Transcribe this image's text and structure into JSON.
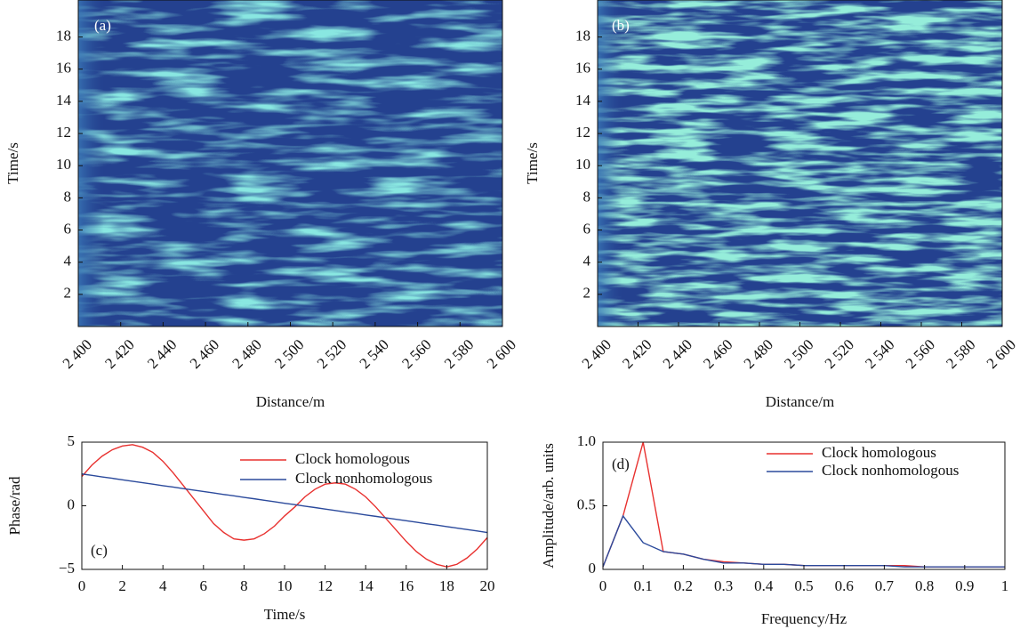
{
  "chart_data": [
    {
      "type": "heatmap",
      "annotation": "(a)",
      "xlabel": "Distance/m",
      "ylabel": "Time/s",
      "xlim": [
        2400,
        2600
      ],
      "ylim": [
        0,
        20.3
      ],
      "xticks": [
        {
          "value": 2400,
          "label": "2 400"
        },
        {
          "value": 2420,
          "label": "2 420"
        },
        {
          "value": 2440,
          "label": "2 440"
        },
        {
          "value": 2460,
          "label": "2 460"
        },
        {
          "value": 2480,
          "label": "2 480"
        },
        {
          "value": 2500,
          "label": "2 500"
        },
        {
          "value": 2520,
          "label": "2 520"
        },
        {
          "value": 2540,
          "label": "2 540"
        },
        {
          "value": 2560,
          "label": "2 560"
        },
        {
          "value": 2580,
          "label": "2 580"
        },
        {
          "value": 2600,
          "label": "2 600"
        }
      ],
      "yticks": [
        2,
        4,
        6,
        8,
        10,
        12,
        14,
        16,
        18
      ]
    },
    {
      "type": "heatmap",
      "annotation": "(b)",
      "xlabel": "Distance/m",
      "ylabel": "Time/s",
      "xlim": [
        2400,
        2600
      ],
      "ylim": [
        0,
        20.3
      ],
      "xticks": [
        {
          "value": 2400,
          "label": "2 400"
        },
        {
          "value": 2420,
          "label": "2 420"
        },
        {
          "value": 2440,
          "label": "2 440"
        },
        {
          "value": 2460,
          "label": "2 460"
        },
        {
          "value": 2480,
          "label": "2 480"
        },
        {
          "value": 2500,
          "label": "2 500"
        },
        {
          "value": 2520,
          "label": "2 520"
        },
        {
          "value": 2540,
          "label": "2 540"
        },
        {
          "value": 2560,
          "label": "2 560"
        },
        {
          "value": 2580,
          "label": "2 580"
        },
        {
          "value": 2600,
          "label": "2 600"
        }
      ],
      "yticks": [
        2,
        4,
        6,
        8,
        10,
        12,
        14,
        16,
        18
      ]
    },
    {
      "type": "line",
      "annotation": "(c)",
      "xlabel": "Time/s",
      "ylabel": "Phase/rad",
      "xlim": [
        0,
        20
      ],
      "ylim": [
        -5,
        5
      ],
      "xticks": [
        0,
        2,
        4,
        6,
        8,
        10,
        12,
        14,
        16,
        18,
        20
      ],
      "yticks": [
        {
          "value": -5,
          "label": "−5"
        },
        0,
        5
      ],
      "x": [
        0,
        0.5,
        1,
        1.5,
        2,
        2.5,
        3,
        3.5,
        4,
        4.5,
        5,
        5.5,
        6,
        6.5,
        7,
        7.5,
        8,
        8.5,
        9,
        9.5,
        10,
        10.5,
        11,
        11.5,
        12,
        12.5,
        13,
        13.5,
        14,
        14.5,
        15,
        15.5,
        16,
        16.5,
        17,
        17.5,
        18,
        18.5,
        19,
        19.5,
        20
      ],
      "series": [
        {
          "name": "Clock homologous",
          "color": "#e8312f",
          "values": [
            2.3,
            3.2,
            3.9,
            4.4,
            4.7,
            4.8,
            4.6,
            4.2,
            3.5,
            2.6,
            1.6,
            0.6,
            -0.4,
            -1.4,
            -2.1,
            -2.6,
            -2.7,
            -2.6,
            -2.2,
            -1.6,
            -0.8,
            -0.1,
            0.7,
            1.3,
            1.7,
            1.8,
            1.7,
            1.3,
            0.7,
            -0.1,
            -1.0,
            -1.9,
            -2.8,
            -3.6,
            -4.2,
            -4.6,
            -4.8,
            -4.6,
            -4.1,
            -3.4,
            -2.5
          ]
        },
        {
          "name": "Clock nonhomologous",
          "color": "#2b4a9c",
          "values": [
            2.5,
            2.39,
            2.27,
            2.16,
            2.04,
            1.93,
            1.81,
            1.7,
            1.58,
            1.47,
            1.35,
            1.24,
            1.12,
            1.01,
            0.89,
            0.78,
            0.66,
            0.55,
            0.43,
            0.32,
            0.2,
            0.09,
            -0.03,
            -0.14,
            -0.26,
            -0.37,
            -0.49,
            -0.6,
            -0.72,
            -0.83,
            -0.95,
            -1.06,
            -1.18,
            -1.29,
            -1.41,
            -1.52,
            -1.64,
            -1.75,
            -1.87,
            -1.98,
            -2.1
          ]
        }
      ]
    },
    {
      "type": "line",
      "annotation": "(d)",
      "xlabel": "Frequency/Hz",
      "ylabel": "Amplitude/arb. units",
      "xlim": [
        0,
        1
      ],
      "ylim": [
        0,
        1
      ],
      "xticks": [
        0,
        0.1,
        0.2,
        0.3,
        0.4,
        0.5,
        0.6,
        0.7,
        0.8,
        0.9,
        1
      ],
      "yticks": [
        0,
        0.5,
        {
          "value": 1,
          "label": "1.0"
        }
      ],
      "x": [
        0,
        0.05,
        0.1,
        0.15,
        0.2,
        0.25,
        0.3,
        0.35,
        0.4,
        0.45,
        0.5,
        0.55,
        0.6,
        0.65,
        0.7,
        0.75,
        0.8,
        0.85,
        0.9,
        0.95,
        1
      ],
      "series": [
        {
          "name": "Clock homologous",
          "color": "#e8312f",
          "values": [
            0.02,
            0.42,
            1.0,
            0.14,
            0.12,
            0.08,
            0.06,
            0.05,
            0.04,
            0.04,
            0.03,
            0.03,
            0.03,
            0.03,
            0.03,
            0.03,
            0.02,
            0.02,
            0.02,
            0.02,
            0.02
          ]
        },
        {
          "name": "Clock nonhomologous",
          "color": "#2b4a9c",
          "values": [
            0.02,
            0.42,
            0.21,
            0.14,
            0.12,
            0.08,
            0.05,
            0.05,
            0.04,
            0.04,
            0.03,
            0.03,
            0.03,
            0.03,
            0.03,
            0.02,
            0.02,
            0.02,
            0.02,
            0.02,
            0.02
          ]
        }
      ]
    }
  ]
}
